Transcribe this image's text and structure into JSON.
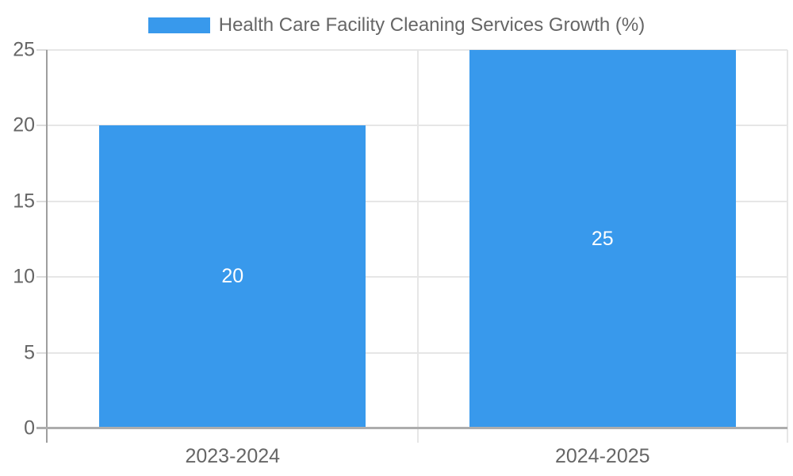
{
  "chart_data": {
    "type": "bar",
    "title": "Health Care Facility Cleaning Services Growth (%)",
    "legend": {
      "position": "top",
      "entries": [
        {
          "label": "Health Care Facility Cleaning Services Growth (%)",
          "swatch_color": "#3899ec"
        }
      ]
    },
    "categories": [
      "2023-2024",
      "2024-2025"
    ],
    "values": [
      20,
      25
    ],
    "data_labels": [
      "20",
      "25"
    ],
    "xlabel": "",
    "ylabel": "",
    "ylim": [
      0,
      25
    ],
    "yticks": [
      0,
      5,
      10,
      15,
      20,
      25
    ],
    "grid": true
  },
  "colors": {
    "bar": "#3899ec",
    "text": "#666666",
    "data_label_text": "#ffffff",
    "gridline": "#e6e6e6",
    "tick": "#dcdcdc",
    "axis_y": "#9e9e9e",
    "axis_x": "#adadad",
    "background": "#ffffff"
  }
}
